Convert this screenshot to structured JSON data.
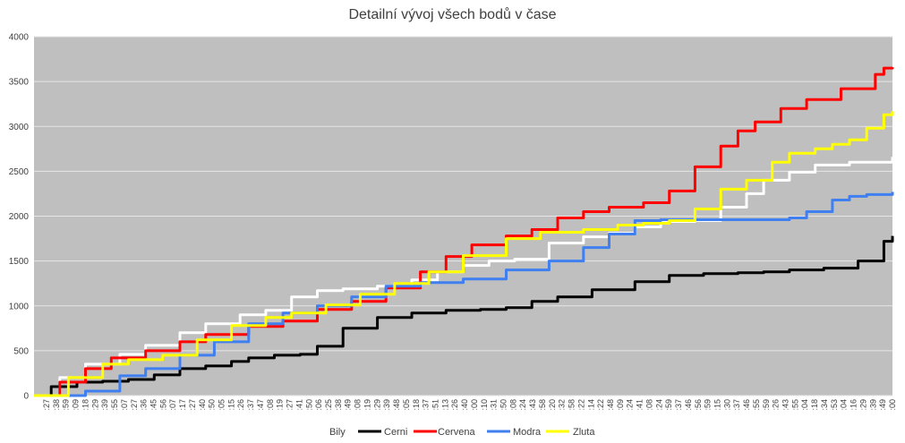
{
  "chart_data": {
    "type": "line",
    "title": "Detailní vývoj všech bodů v čase",
    "xlabel": "",
    "ylabel": "",
    "ylim": [
      0,
      4000
    ],
    "yticks": [
      0,
      500,
      1000,
      1500,
      2000,
      2500,
      3000,
      3500,
      4000
    ],
    "grid": true,
    "legend_position": "bottom",
    "background_color": "#bfbfbf",
    "x_tick_labels": [
      ":27",
      ":38",
      ":59",
      ":09",
      ":18",
      ":29",
      ":39",
      ":55",
      ":07",
      ":27",
      ":36",
      ":45",
      ":56",
      ":07",
      ":17",
      ":27",
      ":40",
      ":50",
      ":05",
      ":15",
      ":26",
      ":37",
      ":47",
      ":08",
      ":19",
      ":27",
      ":41",
      ":50",
      ":06",
      ":25",
      ":38",
      ":49",
      ":08",
      ":19",
      ":29",
      ":39",
      ":48",
      ":05",
      ":18",
      ":37",
      ":51",
      ":13",
      ":26",
      ":40",
      ":00",
      ":10",
      ":31",
      ":50",
      ":08",
      ":24",
      ":43",
      ":58",
      ":20",
      ":32",
      ":58",
      ":22",
      ":14",
      ":22",
      ":48",
      ":09",
      ":24",
      ":41",
      ":08",
      ":24",
      ":59",
      ":37",
      ":46",
      ":56",
      ":59",
      ":15",
      ":30",
      ":37",
      ":46",
      ":55",
      ":59",
      ":26",
      ":43",
      ":55",
      ":04",
      ":18",
      ":34",
      ":53",
      ":04",
      ":16",
      ":29",
      ":39",
      ":49",
      ":00"
    ],
    "series": [
      {
        "name": "Bily",
        "color": "#ffffff",
        "x": [
          0,
          3,
          6,
          10,
          13,
          17,
          20,
          24,
          27,
          30,
          33,
          36,
          40,
          44,
          47,
          50,
          53,
          56,
          60,
          64,
          67,
          70,
          73,
          77,
          80,
          83,
          85,
          88,
          91,
          95,
          100
        ],
        "y": [
          0,
          200,
          350,
          460,
          560,
          700,
          800,
          900,
          950,
          1100,
          1170,
          1190,
          1220,
          1290,
          1380,
          1450,
          1500,
          1520,
          1700,
          1770,
          1810,
          1880,
          1940,
          1950,
          2100,
          2250,
          2400,
          2490,
          2570,
          2600,
          2660
        ]
      },
      {
        "name": "Cerni",
        "color": "#000000",
        "x": [
          0,
          2,
          5,
          8,
          11,
          14,
          17,
          20,
          23,
          25,
          28,
          31,
          33,
          36,
          40,
          44,
          48,
          52,
          55,
          58,
          61,
          65,
          70,
          74,
          78,
          82,
          85,
          88,
          92,
          96,
          99,
          100
        ],
        "y": [
          0,
          100,
          150,
          160,
          180,
          230,
          300,
          330,
          380,
          420,
          450,
          460,
          550,
          750,
          870,
          920,
          950,
          960,
          980,
          1050,
          1100,
          1180,
          1270,
          1340,
          1360,
          1370,
          1380,
          1400,
          1420,
          1500,
          1720,
          1780
        ]
      },
      {
        "name": "Cervena",
        "color": "#ff0000",
        "x": [
          0,
          3,
          6,
          9,
          13,
          17,
          20,
          25,
          29,
          33,
          37,
          41,
          45,
          48,
          51,
          55,
          58,
          61,
          64,
          67,
          71,
          74,
          77,
          80,
          82,
          84,
          87,
          90,
          94,
          98,
          99,
          100
        ],
        "y": [
          0,
          150,
          300,
          420,
          500,
          600,
          680,
          770,
          830,
          960,
          1050,
          1200,
          1380,
          1550,
          1680,
          1780,
          1850,
          1980,
          2050,
          2100,
          2150,
          2280,
          2550,
          2780,
          2950,
          3050,
          3200,
          3300,
          3420,
          3580,
          3650,
          3660
        ]
      },
      {
        "name": "Modra",
        "color": "#3f7fef",
        "x": [
          0,
          6,
          10,
          13,
          17,
          21,
          25,
          29,
          33,
          37,
          41,
          45,
          50,
          55,
          60,
          64,
          67,
          70,
          73,
          77,
          80,
          84,
          88,
          90,
          93,
          95,
          97,
          100
        ],
        "y": [
          0,
          50,
          220,
          300,
          450,
          600,
          800,
          920,
          1000,
          1100,
          1220,
          1260,
          1300,
          1400,
          1500,
          1650,
          1800,
          1950,
          1960,
          1960,
          1960,
          1960,
          1980,
          2050,
          2180,
          2220,
          2240,
          2270
        ]
      },
      {
        "name": "Zluta",
        "color": "#ffff00",
        "x": [
          0,
          4,
          8,
          11,
          15,
          19,
          23,
          27,
          30,
          34,
          38,
          42,
          46,
          50,
          55,
          59,
          64,
          68,
          71,
          74,
          77,
          80,
          83,
          86,
          88,
          91,
          93,
          95,
          97,
          99,
          100
        ],
        "y": [
          0,
          200,
          350,
          400,
          450,
          620,
          780,
          870,
          920,
          1010,
          1130,
          1250,
          1380,
          1560,
          1750,
          1820,
          1850,
          1900,
          1920,
          1950,
          2080,
          2300,
          2400,
          2600,
          2700,
          2750,
          2800,
          2850,
          2980,
          3130,
          3170
        ]
      }
    ]
  }
}
